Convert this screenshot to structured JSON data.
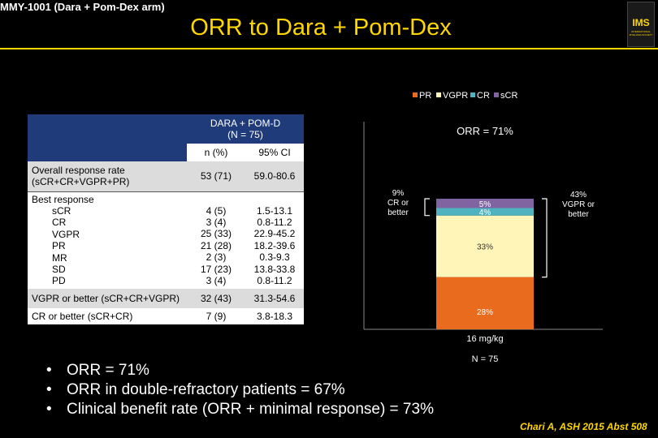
{
  "header": {
    "study": "MMY-1001 (Dara + Pom-Dex arm)",
    "title": "ORR to Dara + Pom-Dex",
    "logo_text": "IMS",
    "logo_subtext": "INTERNATIONAL MYELOMA SOCIETY"
  },
  "table": {
    "group_header_1": "DARA + POM-D",
    "group_header_2": "(N = 75)",
    "col_n": "n (%)",
    "col_ci": "95% CI",
    "orr_label_1": "Overall response rate",
    "orr_label_2": "(sCR+CR+VGPR+PR)",
    "orr_n": "53 (71)",
    "orr_ci": "59.0-80.6",
    "best_response_label": "Best response",
    "best_rows": [
      {
        "label": "sCR",
        "n": "4 (5)",
        "ci": "1.5-13.1"
      },
      {
        "label": "CR",
        "n": "3 (4)",
        "ci": "0.8-11.2"
      },
      {
        "label": "VGPR",
        "n": "25 (33)",
        "ci": "22.9-45.2"
      },
      {
        "label": "PR",
        "n": "21 (28)",
        "ci": "18.2-39.6"
      },
      {
        "label": "MR",
        "n": "2 (3)",
        "ci": "0.3-9.3"
      },
      {
        "label": "SD",
        "n": "17 (23)",
        "ci": "13.8-33.8"
      },
      {
        "label": "PD",
        "n": "3 (4)",
        "ci": "0.8-11.2"
      }
    ],
    "vgpr_label": "VGPR or better (sCR+CR+VGPR)",
    "vgpr_n": "32 (43)",
    "vgpr_ci": "31.3-54.6",
    "cr_label": "CR or better (sCR+CR)",
    "cr_n": "7 (9)",
    "cr_ci": "3.8-18.3"
  },
  "chart_data": {
    "type": "bar",
    "stacked": true,
    "title": "ORR = 71%",
    "categories": [
      "16 mg/kg"
    ],
    "category_sublabel": "N = 75",
    "legend": [
      "PR",
      "VGPR",
      "CR",
      "sCR"
    ],
    "series": [
      {
        "name": "PR",
        "values": [
          28
        ],
        "label": "28%",
        "color": "#e86b1e"
      },
      {
        "name": "VGPR",
        "values": [
          33
        ],
        "label": "33%",
        "color": "#fff5b8"
      },
      {
        "name": "CR",
        "values": [
          4
        ],
        "label": "4%",
        "color": "#4fb3bf"
      },
      {
        "name": "sCR",
        "values": [
          5
        ],
        "label": "5%",
        "color": "#8064a2"
      }
    ],
    "annotations": [
      {
        "lines": [
          "9%",
          "CR or",
          "better"
        ],
        "covers": [
          "CR",
          "sCR"
        ]
      },
      {
        "lines": [
          "43%",
          "VGPR or",
          "better"
        ],
        "covers": [
          "VGPR",
          "CR",
          "sCR"
        ]
      }
    ],
    "ylim": [
      0,
      100
    ]
  },
  "bullets": [
    "ORR = 71%",
    "ORR in double-refractory patients = 67%",
    "Clinical benefit rate (ORR + minimal response) = 73%"
  ],
  "citation": "Chari A, ASH 2015 Abst 508"
}
